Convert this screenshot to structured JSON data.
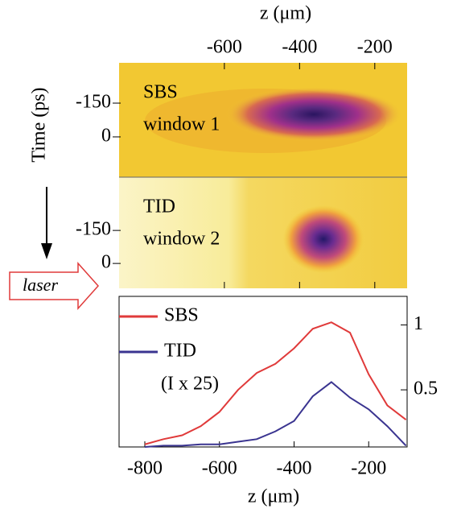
{
  "chart_data": [
    {
      "type": "heatmap",
      "xlabel": "z (μm)",
      "ylabel": "Time (ps)",
      "xlim": [
        -880,
        -114
      ],
      "xticks": [
        -600,
        -400,
        -200
      ],
      "annotation": "laser",
      "panels": [
        {
          "label": "SBS",
          "sublabel": "window 1",
          "ylim": [
            -329,
            179
          ],
          "yticks": [
            -150,
            0
          ]
        },
        {
          "label": "TID",
          "sublabel": "window  2",
          "ylim": [
            -392,
            113
          ],
          "yticks": [
            -150,
            0
          ]
        }
      ]
    },
    {
      "type": "line",
      "xlabel": "z (μm)",
      "xlim": [
        -869,
        -97
      ],
      "xticks": [
        -800,
        -600,
        -400,
        -200
      ],
      "ylim": [
        0.06,
        1.22
      ],
      "yticks": [
        1,
        0.5
      ],
      "annotation": "(I x 25)",
      "x": [
        -800,
        -750,
        -700,
        -650,
        -600,
        -550,
        -500,
        -450,
        -400,
        -350,
        -300,
        -250,
        -200,
        -150,
        -100
      ],
      "series": [
        {
          "name": "SBS",
          "color": "#e03a3a",
          "values": [
            0.08,
            0.12,
            0.15,
            0.22,
            0.33,
            0.5,
            0.63,
            0.7,
            0.82,
            0.97,
            1.02,
            0.94,
            0.62,
            0.38,
            0.27
          ]
        },
        {
          "name": "TID",
          "color": "#3a3490",
          "values": [
            0.06,
            0.07,
            0.07,
            0.08,
            0.08,
            0.1,
            0.12,
            0.18,
            0.26,
            0.45,
            0.56,
            0.44,
            0.35,
            0.22,
            0.07
          ]
        }
      ]
    }
  ]
}
